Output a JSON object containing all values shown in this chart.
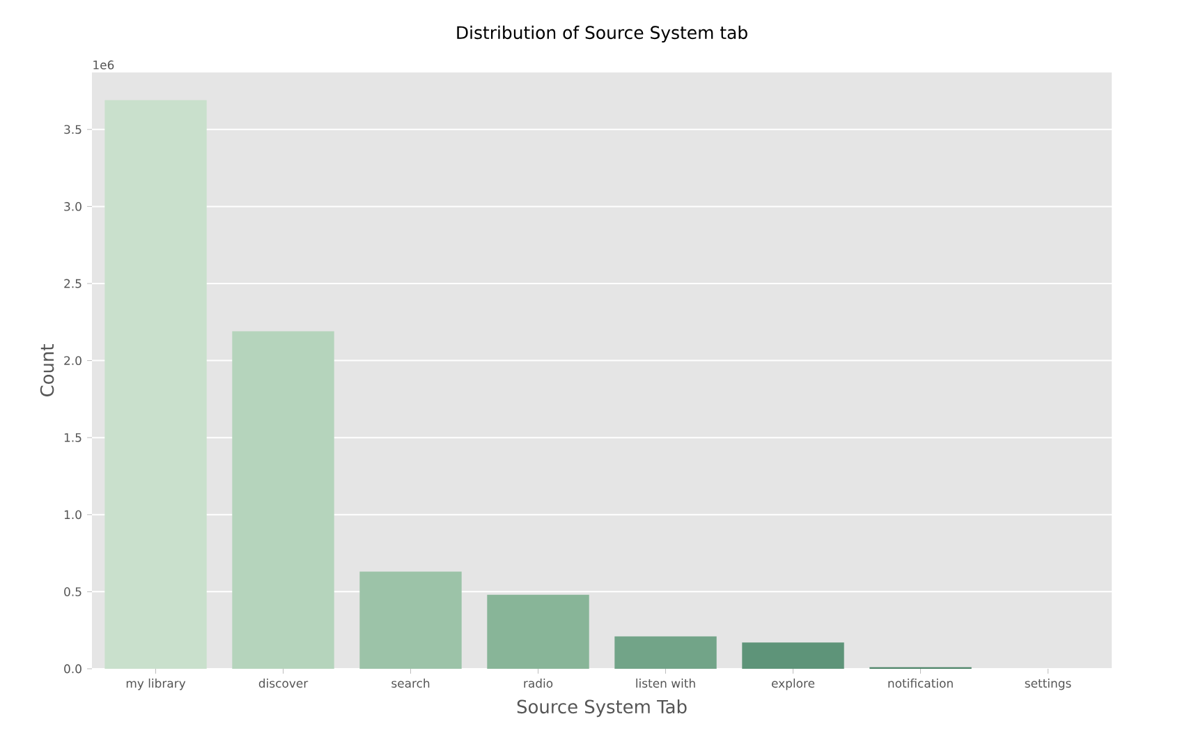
{
  "chart_data": {
    "type": "bar",
    "title": "Distribution of Source System tab",
    "xlabel": "Source System Tab",
    "ylabel": "Count",
    "categories": [
      "my library",
      "discover",
      "search",
      "radio",
      "listen with",
      "explore",
      "notification",
      "settings"
    ],
    "values": [
      3.69,
      2.19,
      0.63,
      0.48,
      0.21,
      0.17,
      0.01,
      0
    ],
    "colors": [
      "#c9e0cc",
      "#b5d4bc",
      "#9cc3a8",
      "#88b598",
      "#72a488",
      "#5e9479",
      "#4e8569",
      "#3f7a5c"
    ],
    "ylim": [
      0,
      3.87
    ],
    "yticks": [
      {
        "value": 0,
        "label": "0.0"
      },
      0.5,
      {
        "value": 1,
        "label": "1.0"
      },
      1.5,
      {
        "value": 2,
        "label": "2.0"
      },
      2.5,
      {
        "value": 3,
        "label": "3.0"
      },
      3.5
    ],
    "annotations": [
      "1e6"
    ],
    "grid": "y"
  }
}
